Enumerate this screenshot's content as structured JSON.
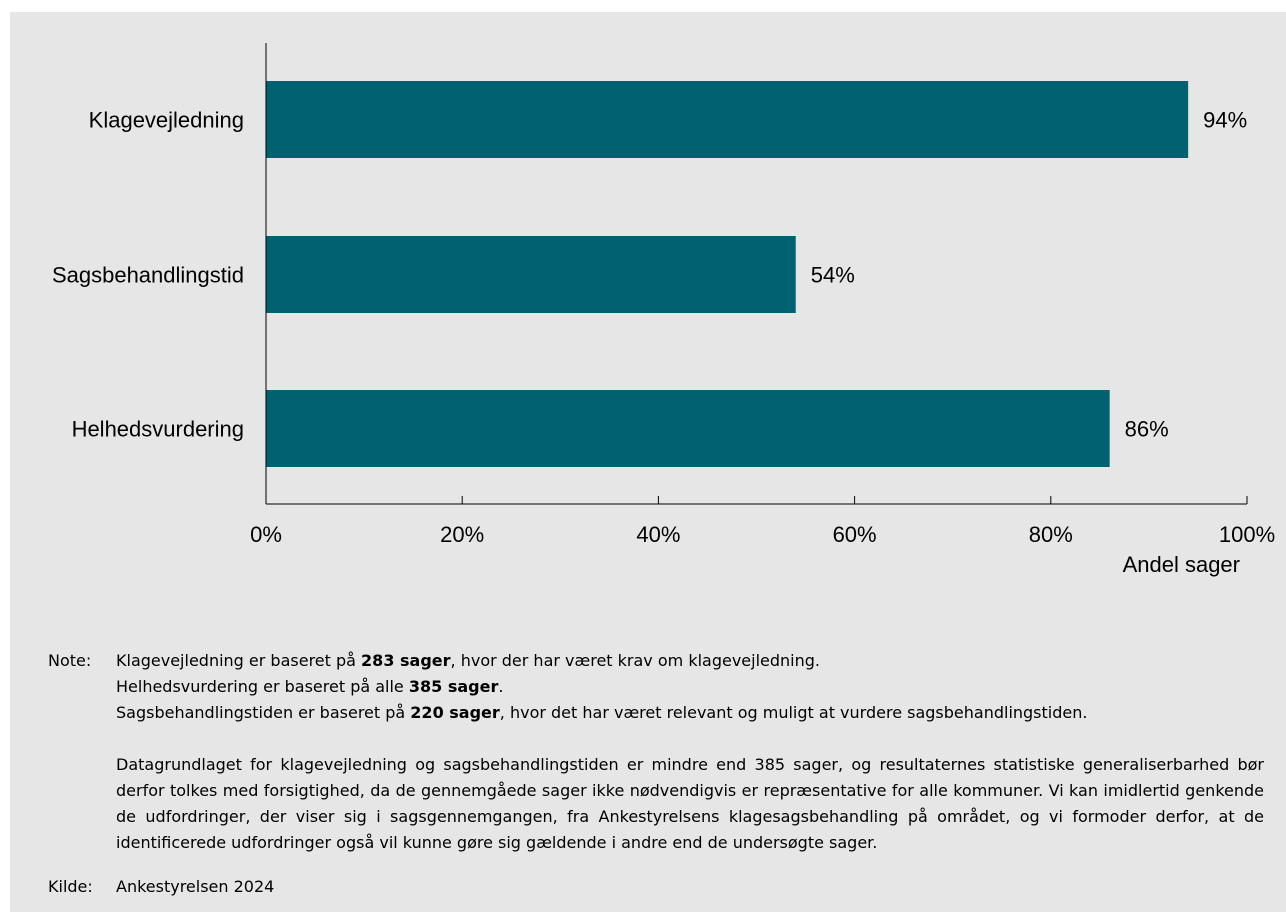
{
  "chart_data": {
    "type": "bar",
    "orientation": "horizontal",
    "categories": [
      "Klagevejledning",
      "Sagsbehandlingstid",
      "Helhedsvurdering"
    ],
    "values": [
      94,
      54,
      86
    ],
    "value_labels": [
      "94%",
      "54%",
      "86%"
    ],
    "xlabel": "Andel sager",
    "xlim": [
      0,
      100
    ],
    "xticks": [
      0,
      20,
      40,
      60,
      80,
      100
    ],
    "xtick_labels": [
      "0%",
      "20%",
      "40%",
      "60%",
      "80%",
      "100%"
    ],
    "bar_color": "#006270",
    "background": "#e6e6e6",
    "grid": false
  },
  "note": {
    "label": "Note:",
    "lines": [
      {
        "pre": "Klagevejledning er baseret på ",
        "bold": "283 sager",
        "post": ", hvor der har været krav om klagevejledning."
      },
      {
        "pre": "Helhedsvurdering er baseret på alle ",
        "bold": "385 sager",
        "post": "."
      },
      {
        "pre": "Sagsbehandlingstiden er baseret på ",
        "bold": "220 sager",
        "post": ", hvor det har været relevant og muligt at vurdere sagsbehandlingstiden."
      }
    ],
    "paragraph": "Datagrundlaget for klagevejledning og sagsbehandlingstiden er mindre end 385 sager, og resultaternes statistiske generaliserbarhed bør derfor tolkes med forsigtighed, da de gennemgåede sager ikke nødvendigvis er repræsentative for alle kommuner. Vi kan imidlertid genkende de udfordringer, der viser sig i sagsgennemgangen, fra Ankestyrelsens klagesagsbehandling på området, og vi formoder derfor, at de identificerede udfordringer også vil kunne gøre sig gældende i andre end de undersøgte sager."
  },
  "source": {
    "label": "Kilde:",
    "text": "Ankestyrelsen 2024"
  }
}
